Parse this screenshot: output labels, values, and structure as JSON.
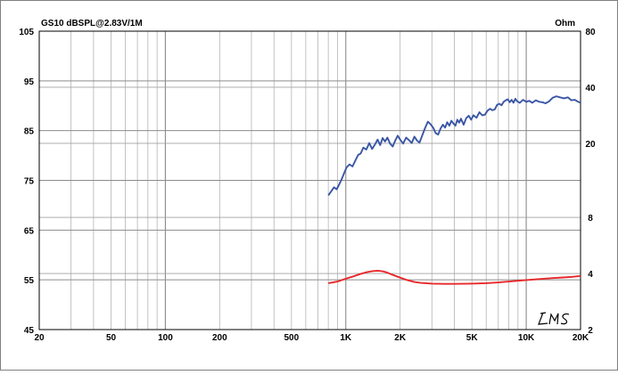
{
  "chart_data": {
    "type": "line",
    "title": "GS10 dBSPL@2.83V/1M",
    "y2_unit_label": "Ohm",
    "x_scale": "log",
    "xlim": [
      20,
      20000
    ],
    "ylim": [
      45,
      105
    ],
    "y2lim": [
      2,
      80
    ],
    "y2_scale": "log",
    "grid": true,
    "x_tick_labels": [
      {
        "value": 20,
        "label": "20"
      },
      {
        "value": 50,
        "label": "50"
      },
      {
        "value": 100,
        "label": "100"
      },
      {
        "value": 200,
        "label": "200"
      },
      {
        "value": 500,
        "label": "500"
      },
      {
        "value": 1000,
        "label": "1K"
      },
      {
        "value": 2000,
        "label": "2K"
      },
      {
        "value": 5000,
        "label": "5K"
      },
      {
        "value": 10000,
        "label": "10K"
      },
      {
        "value": 20000,
        "label": "20K"
      }
    ],
    "y_tick_labels": [
      {
        "value": 105,
        "label": "105"
      },
      {
        "value": 95,
        "label": "95"
      },
      {
        "value": 85,
        "label": "85"
      },
      {
        "value": 75,
        "label": "75"
      },
      {
        "value": 65,
        "label": "65"
      },
      {
        "value": 55,
        "label": "55"
      },
      {
        "value": 45,
        "label": "45"
      }
    ],
    "y2_tick_labels": [
      {
        "value": 80,
        "label": "80"
      },
      {
        "value": 40,
        "label": "40"
      },
      {
        "value": 20,
        "label": "20"
      },
      {
        "value": 8,
        "label": "8"
      },
      {
        "value": 4,
        "label": "4"
      },
      {
        "value": 2,
        "label": "2"
      }
    ],
    "series": [
      {
        "axis": "left",
        "color": "#3a56a6",
        "points": [
          [
            800,
            72.0
          ],
          [
            830,
            72.8
          ],
          [
            860,
            73.6
          ],
          [
            890,
            73.2
          ],
          [
            920,
            74.2
          ],
          [
            950,
            75.3
          ],
          [
            980,
            76.5
          ],
          [
            1010,
            77.6
          ],
          [
            1050,
            78.2
          ],
          [
            1090,
            77.8
          ],
          [
            1130,
            79.0
          ],
          [
            1170,
            80.1
          ],
          [
            1210,
            80.4
          ],
          [
            1250,
            81.6
          ],
          [
            1300,
            81.2
          ],
          [
            1350,
            82.5
          ],
          [
            1400,
            81.3
          ],
          [
            1450,
            82.2
          ],
          [
            1500,
            83.2
          ],
          [
            1550,
            82.1
          ],
          [
            1600,
            83.5
          ],
          [
            1650,
            82.8
          ],
          [
            1700,
            83.6
          ],
          [
            1760,
            82.4
          ],
          [
            1820,
            81.8
          ],
          [
            1880,
            83.0
          ],
          [
            1940,
            84.0
          ],
          [
            2000,
            83.2
          ],
          [
            2080,
            82.4
          ],
          [
            2160,
            83.6
          ],
          [
            2240,
            83.1
          ],
          [
            2320,
            82.5
          ],
          [
            2400,
            83.8
          ],
          [
            2480,
            83.0
          ],
          [
            2560,
            82.6
          ],
          [
            2650,
            84.0
          ],
          [
            2750,
            85.5
          ],
          [
            2850,
            86.8
          ],
          [
            2950,
            86.3
          ],
          [
            3050,
            85.6
          ],
          [
            3150,
            84.5
          ],
          [
            3250,
            84.2
          ],
          [
            3350,
            85.4
          ],
          [
            3450,
            86.2
          ],
          [
            3550,
            85.6
          ],
          [
            3650,
            86.7
          ],
          [
            3750,
            86.0
          ],
          [
            3850,
            87.0
          ],
          [
            3950,
            86.4
          ],
          [
            4050,
            86.0
          ],
          [
            4150,
            87.2
          ],
          [
            4250,
            86.6
          ],
          [
            4350,
            87.4
          ],
          [
            4500,
            86.2
          ],
          [
            4650,
            87.5
          ],
          [
            4800,
            88.0
          ],
          [
            4950,
            87.2
          ],
          [
            5100,
            88.1
          ],
          [
            5300,
            87.6
          ],
          [
            5500,
            88.7
          ],
          [
            5700,
            88.1
          ],
          [
            5900,
            88.2
          ],
          [
            6100,
            89.0
          ],
          [
            6300,
            89.4
          ],
          [
            6500,
            89.1
          ],
          [
            6700,
            89.3
          ],
          [
            6900,
            90.2
          ],
          [
            7100,
            90.4
          ],
          [
            7300,
            90.1
          ],
          [
            7500,
            90.8
          ],
          [
            7700,
            91.1
          ],
          [
            7900,
            91.3
          ],
          [
            8100,
            90.7
          ],
          [
            8300,
            91.2
          ],
          [
            8500,
            90.6
          ],
          [
            8700,
            91.4
          ],
          [
            8900,
            90.9
          ],
          [
            9200,
            90.6
          ],
          [
            9600,
            91.2
          ],
          [
            10000,
            90.8
          ],
          [
            10400,
            91.0
          ],
          [
            10800,
            90.6
          ],
          [
            11300,
            91.1
          ],
          [
            11800,
            90.8
          ],
          [
            12300,
            90.7
          ],
          [
            12800,
            90.5
          ],
          [
            13400,
            90.9
          ],
          [
            14000,
            91.6
          ],
          [
            14700,
            91.9
          ],
          [
            15400,
            91.7
          ],
          [
            16200,
            91.5
          ],
          [
            17000,
            91.7
          ],
          [
            17800,
            91.1
          ],
          [
            18600,
            91.2
          ],
          [
            19400,
            90.8
          ],
          [
            20000,
            90.6
          ]
        ]
      },
      {
        "axis": "right",
        "color": "#e8282a",
        "points": [
          [
            800,
            3.55
          ],
          [
            900,
            3.62
          ],
          [
            1000,
            3.75
          ],
          [
            1100,
            3.86
          ],
          [
            1200,
            3.97
          ],
          [
            1300,
            4.06
          ],
          [
            1400,
            4.12
          ],
          [
            1500,
            4.14
          ],
          [
            1600,
            4.11
          ],
          [
            1700,
            4.04
          ],
          [
            1800,
            3.95
          ],
          [
            2000,
            3.8
          ],
          [
            2200,
            3.68
          ],
          [
            2400,
            3.6
          ],
          [
            2600,
            3.56
          ],
          [
            3000,
            3.53
          ],
          [
            3500,
            3.52
          ],
          [
            4000,
            3.52
          ],
          [
            5000,
            3.53
          ],
          [
            6000,
            3.55
          ],
          [
            7000,
            3.58
          ],
          [
            8000,
            3.62
          ],
          [
            10000,
            3.69
          ],
          [
            12000,
            3.74
          ],
          [
            14000,
            3.78
          ],
          [
            16000,
            3.81
          ],
          [
            18000,
            3.84
          ],
          [
            20000,
            3.88
          ]
        ]
      }
    ]
  },
  "logo": {
    "text": "LMS"
  }
}
